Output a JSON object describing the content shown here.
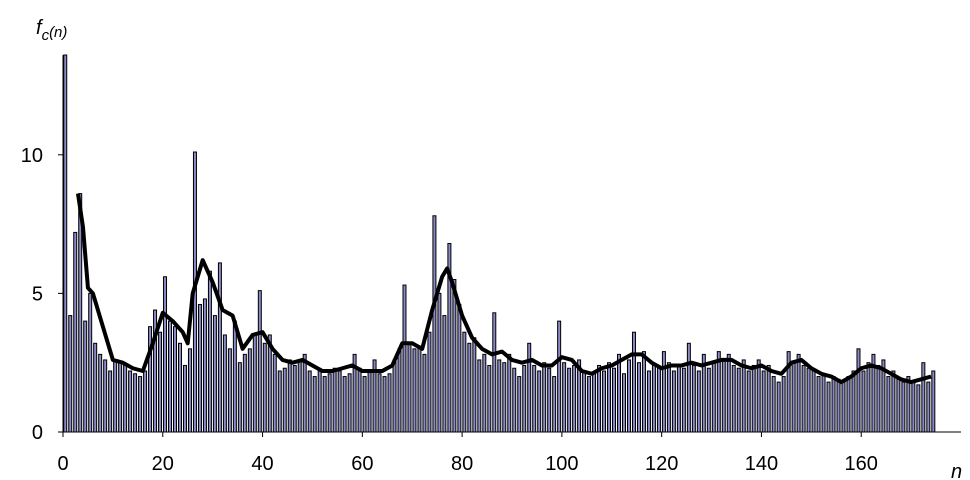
{
  "chart_data": {
    "type": "bar_line",
    "ylabel": "f",
    "ylabel_sub": "c",
    "ylabel_arg": "(n)",
    "xlabel": "n",
    "xlim": [
      0,
      180
    ],
    "ylim": [
      0,
      13.6
    ],
    "xticks": [
      0,
      20,
      40,
      60,
      80,
      100,
      120,
      140,
      160
    ],
    "yticks": [
      0,
      5,
      10
    ],
    "grid": false,
    "x": [
      0,
      1,
      2,
      3,
      4,
      5,
      6,
      7,
      8,
      9,
      10,
      11,
      12,
      13,
      14,
      15,
      16,
      17,
      18,
      19,
      20,
      21,
      22,
      23,
      24,
      25,
      26,
      27,
      28,
      29,
      30,
      31,
      32,
      33,
      34,
      35,
      36,
      37,
      38,
      39,
      40,
      41,
      42,
      43,
      44,
      45,
      46,
      47,
      48,
      49,
      50,
      51,
      52,
      53,
      54,
      55,
      56,
      57,
      58,
      59,
      60,
      61,
      62,
      63,
      64,
      65,
      66,
      67,
      68,
      69,
      70,
      71,
      72,
      73,
      74,
      75,
      76,
      77,
      78,
      79,
      80,
      81,
      82,
      83,
      84,
      85,
      86,
      87,
      88,
      89,
      90,
      91,
      92,
      93,
      94,
      95,
      96,
      97,
      98,
      99,
      100,
      101,
      102,
      103,
      104,
      105,
      106,
      107,
      108,
      109,
      110,
      111,
      112,
      113,
      114,
      115,
      116,
      117,
      118,
      119,
      120,
      121,
      122,
      123,
      124,
      125,
      126,
      127,
      128,
      129,
      130,
      131,
      132,
      133,
      134,
      135,
      136,
      137,
      138,
      139,
      140,
      141,
      142,
      143,
      144,
      145,
      146,
      147,
      148,
      149,
      150,
      151,
      152,
      153,
      154,
      155,
      156,
      157,
      158,
      159,
      160,
      161,
      162,
      163,
      164,
      165,
      166,
      167,
      168,
      169,
      170,
      171,
      172,
      173,
      174
    ],
    "series": [
      {
        "type": "bar",
        "color": "#8a8ac6",
        "values": [
          13.6,
          4.2,
          7.2,
          8.6,
          4.0,
          5.0,
          3.2,
          2.8,
          2.6,
          2.2,
          2.6,
          2.5,
          2.4,
          2.2,
          2.1,
          2.0,
          2.2,
          3.8,
          4.4,
          3.6,
          5.6,
          4.0,
          3.8,
          3.2,
          2.4,
          3.0,
          10.1,
          4.6,
          4.8,
          5.8,
          4.2,
          6.1,
          3.5,
          3.0,
          4.0,
          2.5,
          2.8,
          3.0,
          3.5,
          5.1,
          3.2,
          3.5,
          2.8,
          2.2,
          2.3,
          2.6,
          2.4,
          2.6,
          2.8,
          2.2,
          2.0,
          2.2,
          2.0,
          2.1,
          2.3,
          2.2,
          2.0,
          2.1,
          2.8,
          2.3,
          2.0,
          2.2,
          2.6,
          2.1,
          2.0,
          2.1,
          2.6,
          3.0,
          5.3,
          3.2,
          3.0,
          3.1,
          2.8,
          3.6,
          7.8,
          5.0,
          4.2,
          6.8,
          5.5,
          4.6,
          3.6,
          3.2,
          3.4,
          2.6,
          2.8,
          2.4,
          4.3,
          2.6,
          2.5,
          2.8,
          2.3,
          2.0,
          2.4,
          3.2,
          2.4,
          2.2,
          2.5,
          2.3,
          2.0,
          4.0,
          2.5,
          2.3,
          2.4,
          2.6,
          2.2,
          2.0,
          2.1,
          2.4,
          2.2,
          2.5,
          2.3,
          2.8,
          2.1,
          2.6,
          3.6,
          2.5,
          2.9,
          2.2,
          2.4,
          2.3,
          2.9,
          2.5,
          2.2,
          2.4,
          2.3,
          3.2,
          2.4,
          2.2,
          2.8,
          2.3,
          2.5,
          2.9,
          2.6,
          2.8,
          2.4,
          2.3,
          2.6,
          2.2,
          2.4,
          2.6,
          2.2,
          2.4,
          2.0,
          1.8,
          2.0,
          2.9,
          2.5,
          2.8,
          2.4,
          2.3,
          2.2,
          2.0,
          2.1,
          1.8,
          2.0,
          1.9,
          1.8,
          2.0,
          2.2,
          3.0,
          2.2,
          2.5,
          2.8,
          2.4,
          2.6,
          2.0,
          2.2,
          1.9,
          1.8,
          2.0,
          1.8,
          1.7,
          2.5,
          1.8,
          2.2
        ]
      },
      {
        "type": "line",
        "color": "#000000",
        "x": [
          3,
          4,
          5,
          6,
          8,
          10,
          12,
          14,
          16,
          18,
          20,
          22,
          24,
          25,
          26,
          28,
          30,
          32,
          34,
          36,
          38,
          40,
          42,
          44,
          46,
          48,
          50,
          52,
          54,
          56,
          58,
          60,
          62,
          64,
          66,
          68,
          70,
          72,
          74,
          76,
          77,
          78,
          80,
          82,
          84,
          86,
          88,
          90,
          92,
          94,
          96,
          98,
          100,
          102,
          104,
          106,
          108,
          110,
          112,
          114,
          116,
          118,
          120,
          122,
          124,
          126,
          128,
          130,
          132,
          134,
          136,
          138,
          140,
          142,
          144,
          146,
          148,
          150,
          152,
          154,
          156,
          158,
          160,
          162,
          164,
          166,
          168,
          170,
          172,
          174
        ],
        "values": [
          8.6,
          7.4,
          5.2,
          5.0,
          3.8,
          2.6,
          2.5,
          2.3,
          2.2,
          3.2,
          4.3,
          4.0,
          3.6,
          3.2,
          5.0,
          6.2,
          5.4,
          4.4,
          4.2,
          3.0,
          3.5,
          3.6,
          3.0,
          2.6,
          2.5,
          2.6,
          2.4,
          2.2,
          2.2,
          2.3,
          2.4,
          2.2,
          2.2,
          2.2,
          2.4,
          3.2,
          3.2,
          3.0,
          4.4,
          5.6,
          5.9,
          5.4,
          4.2,
          3.4,
          3.0,
          2.8,
          2.9,
          2.6,
          2.5,
          2.6,
          2.4,
          2.4,
          2.7,
          2.6,
          2.2,
          2.1,
          2.3,
          2.4,
          2.6,
          2.8,
          2.8,
          2.5,
          2.3,
          2.4,
          2.4,
          2.5,
          2.4,
          2.5,
          2.6,
          2.6,
          2.4,
          2.3,
          2.4,
          2.2,
          2.1,
          2.5,
          2.6,
          2.3,
          2.1,
          2.0,
          1.8,
          2.0,
          2.3,
          2.4,
          2.3,
          2.1,
          1.9,
          1.8,
          1.9,
          2.0
        ]
      }
    ]
  }
}
